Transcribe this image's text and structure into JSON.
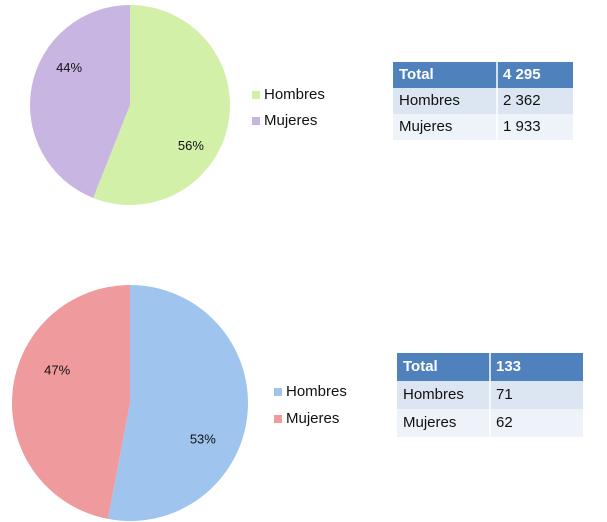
{
  "chart_data": [
    {
      "type": "pie",
      "categories": [
        "Hombres",
        "Mujeres"
      ],
      "values": [
        56,
        44
      ],
      "value_labels": [
        "56%",
        "44%"
      ],
      "colors": [
        "#d3f0a9",
        "#c9b5e2"
      ]
    },
    {
      "type": "pie",
      "categories": [
        "Hombres",
        "Mujeres"
      ],
      "values": [
        53,
        47
      ],
      "value_labels": [
        "53%",
        "47%"
      ],
      "colors": [
        "#9fc4ee",
        "#ef9a9c"
      ]
    }
  ],
  "tables": [
    {
      "header": [
        "Total",
        "4 295"
      ],
      "rows": [
        [
          "Hombres",
          "2 362"
        ],
        [
          "Mujeres",
          "1 933"
        ]
      ]
    },
    {
      "header": [
        "Total",
        "133"
      ],
      "rows": [
        [
          "Hombres",
          "71"
        ],
        [
          "Mujeres",
          "62"
        ]
      ]
    }
  ]
}
